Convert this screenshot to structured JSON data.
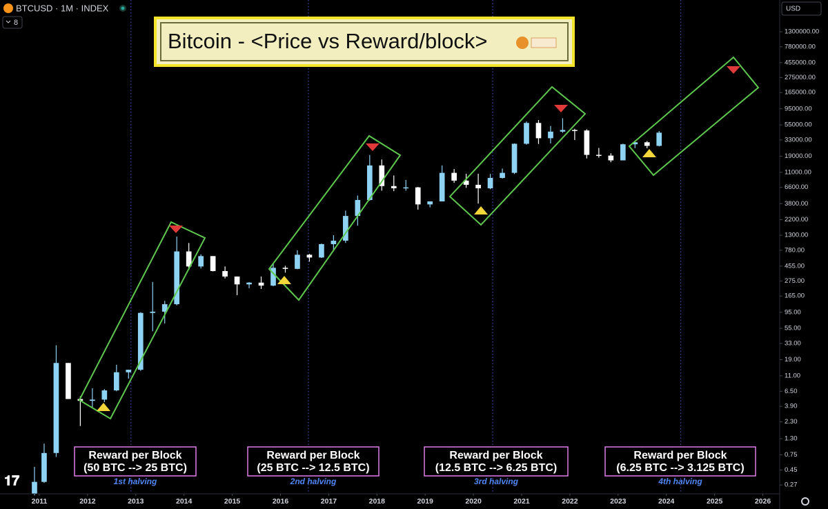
{
  "ui": {
    "symbol": "BTCUSD · 1M · INDEX",
    "indicator_count": 8,
    "currency": "USD"
  },
  "chart_data": {
    "type": "candlestick",
    "title": "Bitcoin - <Price vs Reward/block>",
    "log_scale": true,
    "grid": false,
    "up_color": "#8fd3f4",
    "down_color": "#ffffff",
    "x": [
      2010.9,
      2011.1,
      2011.35,
      2011.6,
      2011.85,
      2012.1,
      2012.35,
      2012.6,
      2012.85,
      2013.1,
      2013.35,
      2013.6,
      2013.85,
      2014.1,
      2014.35,
      2014.6,
      2014.85,
      2015.1,
      2015.35,
      2015.6,
      2015.85,
      2016.1,
      2016.35,
      2016.6,
      2016.85,
      2017.1,
      2017.35,
      2017.6,
      2017.85,
      2018.1,
      2018.35,
      2018.6,
      2018.85,
      2019.1,
      2019.35,
      2019.6,
      2019.85,
      2020.1,
      2020.35,
      2020.6,
      2020.85,
      2021.1,
      2021.35,
      2021.6,
      2021.85,
      2022.1,
      2022.35,
      2022.6,
      2022.85,
      2023.1,
      2023.35,
      2023.6,
      2023.85
    ],
    "open": [
      0.2,
      0.3,
      0.8,
      17,
      5,
      4.7,
      4.9,
      6.7,
      12.4,
      13.5,
      93,
      97,
      125,
      750,
      450,
      640,
      385,
      320,
      245,
      260,
      235,
      430,
      415,
      670,
      610,
      960,
      1080,
      2500,
      4300,
      13900,
      6900,
      6400,
      6600,
      3700,
      4100,
      10800,
      8300,
      7200,
      6400,
      9100,
      10800,
      29000,
      58800,
      35000,
      43800,
      46300,
      45500,
      19900,
      19400,
      16500,
      28500,
      30500,
      27000
    ],
    "high": [
      0.5,
      1.1,
      31,
      17,
      5.5,
      7.2,
      7,
      16,
      13.5,
      95,
      266,
      140,
      1240,
      1000,
      680,
      640,
      450,
      320,
      265,
      320,
      500,
      460,
      780,
      690,
      980,
      1300,
      3000,
      5000,
      19800,
      17000,
      9900,
      8500,
      6700,
      4100,
      13900,
      12300,
      10500,
      10500,
      10400,
      12500,
      29300,
      61800,
      64900,
      53000,
      69000,
      48200,
      47400,
      25200,
      21000,
      29100,
      31400,
      31800,
      44700
    ],
    "low": [
      0.19,
      0.29,
      0.7,
      6,
      2.0,
      3.8,
      4.5,
      6.5,
      10,
      13,
      50,
      65,
      120,
      400,
      420,
      380,
      300,
      170,
      215,
      210,
      230,
      365,
      410,
      530,
      600,
      750,
      1000,
      1800,
      4200,
      5900,
      5800,
      5900,
      3100,
      3350,
      4100,
      7700,
      6500,
      3800,
      6200,
      8900,
      10400,
      28100,
      28800,
      29300,
      42000,
      32900,
      17600,
      18100,
      15500,
      16500,
      25000,
      24900,
      26500
    ],
    "close": [
      0.3,
      0.8,
      17,
      5,
      4.7,
      4.9,
      6.7,
      12.4,
      13.5,
      93,
      97,
      125,
      750,
      450,
      640,
      385,
      320,
      245,
      260,
      235,
      430,
      415,
      670,
      610,
      960,
      1080,
      2500,
      4300,
      13900,
      6900,
      6400,
      6600,
      3700,
      4100,
      10800,
      8300,
      7200,
      6400,
      9100,
      10800,
      29000,
      58800,
      35000,
      43800,
      46300,
      45500,
      19900,
      19400,
      16500,
      28500,
      30500,
      27000,
      42300
    ],
    "xlim": [
      2010.185,
      2026.35
    ],
    "xticks": [
      2011,
      2012,
      2013,
      2014,
      2015,
      2016,
      2017,
      2018,
      2019,
      2020,
      2021,
      2022,
      2023,
      2024,
      2025,
      2026
    ],
    "ylim": [
      0.2,
      3820000
    ],
    "yticks": [
      {
        "value": 1300000,
        "label": "1300000.00"
      },
      {
        "value": 780000,
        "label": "780000.00"
      },
      {
        "value": 455000,
        "label": "455000.00"
      },
      {
        "value": 275000,
        "label": "275000.00"
      },
      {
        "value": 165000,
        "label": "165000.00"
      },
      {
        "value": 95000,
        "label": "95000.00"
      },
      {
        "value": 55000,
        "label": "55000.00"
      },
      {
        "value": 33000,
        "label": "33000.00"
      },
      {
        "value": 19000,
        "label": "19000.00"
      },
      {
        "value": 11000,
        "label": "11000.00"
      },
      {
        "value": 6600,
        "label": "6600.00"
      },
      {
        "value": 3800,
        "label": "3800.00"
      },
      {
        "value": 2200,
        "label": "2200.00"
      },
      {
        "value": 1300,
        "label": "1300.00"
      },
      {
        "value": 780,
        "label": "780.00"
      },
      {
        "value": 455,
        "label": "455.00"
      },
      {
        "value": 275,
        "label": "275.00"
      },
      {
        "value": 165,
        "label": "165.00"
      },
      {
        "value": 95,
        "label": "95.00"
      },
      {
        "value": 55,
        "label": "55.00"
      },
      {
        "value": 33,
        "label": "33.00"
      },
      {
        "value": 19,
        "label": "19.00"
      },
      {
        "value": 11,
        "label": "11.00"
      },
      {
        "value": 6.5,
        "label": "6.50"
      },
      {
        "value": 3.9,
        "label": "3.90"
      },
      {
        "value": 2.3,
        "label": "2.30"
      },
      {
        "value": 1.3,
        "label": "1.30"
      },
      {
        "value": 0.75,
        "label": "0.75"
      },
      {
        "value": 0.45,
        "label": "0.45"
      },
      {
        "value": 0.27,
        "label": "0.27"
      }
    ],
    "halvings": [
      {
        "x": 2012.9,
        "box_title": "Reward per Block",
        "box_text": "(50 BTC --> 25 BTC)",
        "label": "1st halving"
      },
      {
        "x": 2016.58,
        "box_title": "Reward per Block",
        "box_text": "(25 BTC --> 12.5 BTC)",
        "label": "2nd halving"
      },
      {
        "x": 2020.4,
        "box_title": "Reward per Block",
        "box_text": "(12.5 BTC --> 6.25 BTC)",
        "label": "3rd halving"
      },
      {
        "x": 2024.3,
        "box_title": "Reward per Block",
        "box_text": "(6.25 BTC --> 3.125 BTC)",
        "label": "4th halving"
      }
    ]
  }
}
